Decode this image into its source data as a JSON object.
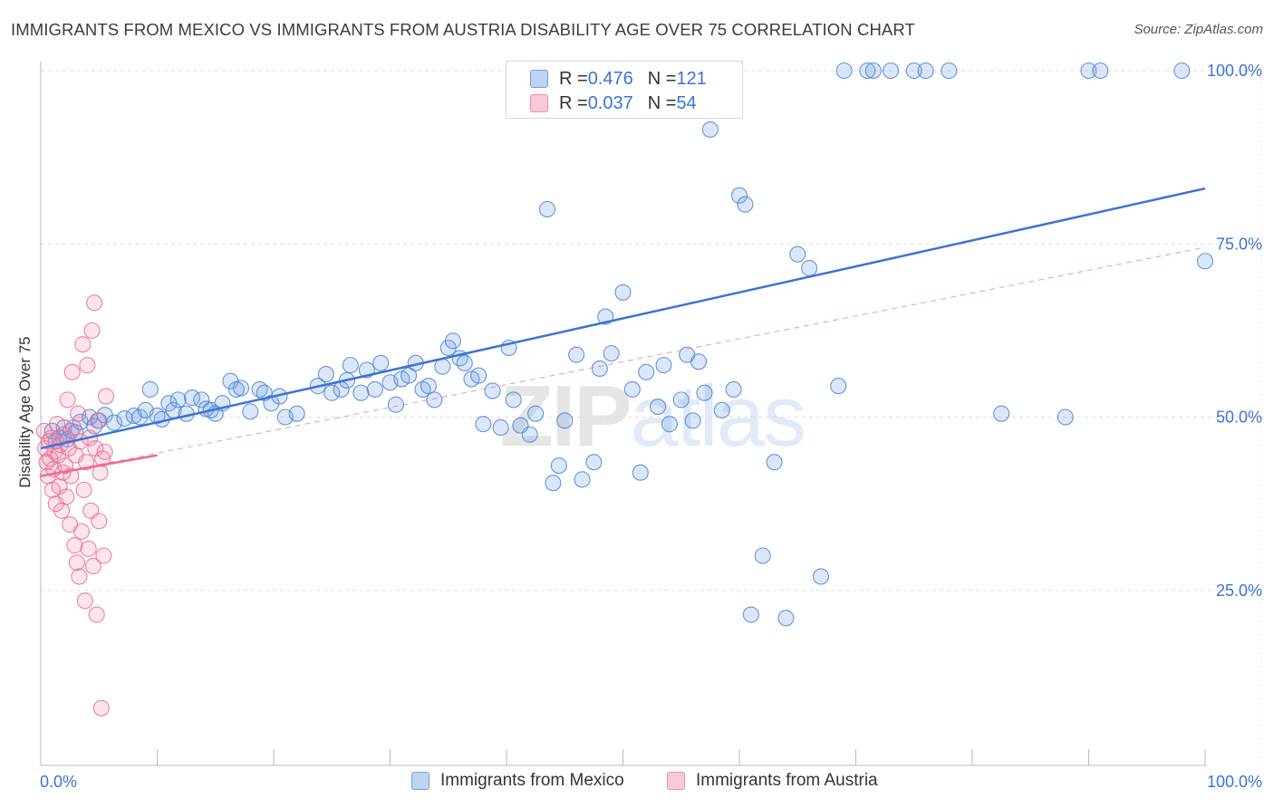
{
  "header": {
    "title": "IMMIGRANTS FROM MEXICO VS IMMIGRANTS FROM AUSTRIA DISABILITY AGE OVER 75 CORRELATION CHART",
    "source": "Source: ZipAtlas.com"
  },
  "watermark": {
    "zip": "ZIP",
    "atlas": "atlas"
  },
  "legend_top": {
    "rows": [
      {
        "r_label": "R = ",
        "r_value": "0.476",
        "n_label": "N = ",
        "n_value": "121"
      },
      {
        "r_label": "R = ",
        "r_value": "0.037",
        "n_label": "N = ",
        "n_value": "54"
      }
    ]
  },
  "legend_bottom": {
    "items": [
      "Immigrants from Mexico",
      "Immigrants from Austria"
    ]
  },
  "chart_data": {
    "type": "scatter",
    "title": "IMMIGRANTS FROM MEXICO VS IMMIGRANTS FROM AUSTRIA DISABILITY AGE OVER 75 CORRELATION CHART",
    "xlabel": "",
    "ylabel": "Disability Age Over 75",
    "xlim": [
      0,
      100
    ],
    "ylim": [
      0,
      100
    ],
    "x_tick_labels": [
      "0.0%",
      "100.0%"
    ],
    "y_ticks": [
      25,
      50,
      75,
      100
    ],
    "y_tick_labels": [
      "25.0%",
      "50.0%",
      "75.0%",
      "100.0%"
    ],
    "grid": true,
    "legend_position": "bottom",
    "colors": {
      "mexico": "#6f9fe3",
      "austria": "#f08aa8",
      "mexico_line": "#3b73d6",
      "austria_line": "#e86c95",
      "tick_label": "#3b73d6"
    },
    "series": [
      {
        "name": "Immigrants from Mexico",
        "color": "#6f9fe3",
        "trend": {
          "x": [
            0,
            100
          ],
          "y": [
            45.5,
            83.0
          ],
          "style": "solid"
        },
        "points": [
          [
            1.0,
            48.0
          ],
          [
            1.3,
            46.5
          ],
          [
            1.6,
            47.0
          ],
          [
            2.0,
            48.5
          ],
          [
            2.3,
            46.8
          ],
          [
            2.6,
            48.0
          ],
          [
            3.0,
            47.8
          ],
          [
            3.4,
            49.3
          ],
          [
            4.2,
            50.0
          ],
          [
            4.6,
            48.7
          ],
          [
            5.0,
            49.5
          ],
          [
            5.5,
            50.3
          ],
          [
            6.3,
            49.2
          ],
          [
            7.2,
            49.8
          ],
          [
            8.0,
            50.2
          ],
          [
            8.5,
            50.0
          ],
          [
            9.0,
            51.0
          ],
          [
            9.4,
            54.0
          ],
          [
            10.0,
            50.2
          ],
          [
            10.4,
            49.7
          ],
          [
            11.0,
            52.0
          ],
          [
            11.4,
            51.0
          ],
          [
            11.8,
            52.5
          ],
          [
            12.5,
            50.5
          ],
          [
            13.0,
            52.8
          ],
          [
            13.8,
            52.5
          ],
          [
            14.2,
            51.2
          ],
          [
            14.6,
            51.0
          ],
          [
            15.0,
            50.5
          ],
          [
            15.6,
            52.0
          ],
          [
            16.3,
            55.2
          ],
          [
            16.8,
            54.0
          ],
          [
            17.2,
            54.2
          ],
          [
            18.0,
            50.8
          ],
          [
            18.8,
            54.0
          ],
          [
            19.2,
            53.5
          ],
          [
            19.8,
            52.0
          ],
          [
            20.5,
            53.0
          ],
          [
            21.0,
            50.0
          ],
          [
            22.0,
            50.5
          ],
          [
            23.8,
            54.5
          ],
          [
            24.5,
            56.2
          ],
          [
            25.0,
            53.5
          ],
          [
            25.8,
            54.0
          ],
          [
            26.3,
            55.3
          ],
          [
            26.6,
            57.5
          ],
          [
            27.5,
            53.5
          ],
          [
            28.0,
            56.8
          ],
          [
            28.7,
            54.0
          ],
          [
            29.2,
            57.8
          ],
          [
            30.0,
            55.0
          ],
          [
            30.5,
            51.8
          ],
          [
            31.0,
            55.5
          ],
          [
            31.6,
            56.0
          ],
          [
            32.2,
            57.8
          ],
          [
            32.8,
            54.0
          ],
          [
            33.3,
            54.5
          ],
          [
            33.8,
            52.5
          ],
          [
            34.5,
            57.3
          ],
          [
            35.0,
            60.0
          ],
          [
            35.4,
            61.0
          ],
          [
            36.0,
            58.5
          ],
          [
            36.4,
            57.8
          ],
          [
            37.0,
            55.5
          ],
          [
            37.6,
            56.0
          ],
          [
            38.0,
            49.0
          ],
          [
            38.8,
            53.8
          ],
          [
            39.5,
            48.5
          ],
          [
            40.2,
            60.0
          ],
          [
            40.6,
            52.5
          ],
          [
            41.2,
            48.8
          ],
          [
            42.0,
            47.5
          ],
          [
            42.5,
            50.5
          ],
          [
            43.5,
            80.0
          ],
          [
            44.0,
            40.5
          ],
          [
            44.5,
            43.0
          ],
          [
            45.0,
            49.5
          ],
          [
            46.0,
            59.0
          ],
          [
            46.5,
            41.0
          ],
          [
            47.5,
            43.5
          ],
          [
            48.0,
            57.0
          ],
          [
            48.5,
            64.5
          ],
          [
            49.0,
            59.2
          ],
          [
            50.0,
            68.0
          ],
          [
            50.8,
            54.0
          ],
          [
            51.5,
            42.0
          ],
          [
            52.0,
            56.5
          ],
          [
            53.0,
            51.5
          ],
          [
            53.5,
            57.5
          ],
          [
            54.0,
            49.0
          ],
          [
            55.0,
            52.5
          ],
          [
            55.5,
            59.0
          ],
          [
            56.0,
            49.5
          ],
          [
            56.5,
            58.0
          ],
          [
            57.0,
            53.5
          ],
          [
            57.5,
            91.5
          ],
          [
            58.5,
            51.0
          ],
          [
            59.5,
            54.0
          ],
          [
            60.0,
            82.0
          ],
          [
            60.5,
            80.7
          ],
          [
            61.0,
            21.5
          ],
          [
            62.0,
            30.0
          ],
          [
            63.0,
            43.5
          ],
          [
            64.0,
            21.0
          ],
          [
            65.0,
            73.5
          ],
          [
            66.0,
            71.5
          ],
          [
            67.0,
            27.0
          ],
          [
            68.5,
            54.5
          ],
          [
            71.0,
            100.0
          ],
          [
            71.5,
            100.0
          ],
          [
            73.0,
            100.0
          ],
          [
            75.0,
            100.0
          ],
          [
            76.0,
            100.0
          ],
          [
            78.0,
            100.0
          ],
          [
            82.5,
            50.5
          ],
          [
            88.0,
            50.0
          ],
          [
            90.0,
            100.0
          ],
          [
            91.0,
            100.0
          ],
          [
            98.0,
            100.0
          ],
          [
            100.0,
            72.5
          ],
          [
            69.0,
            100.0
          ]
        ]
      },
      {
        "name": "Immigrants from Austria",
        "color": "#f08aa8",
        "trend": {
          "x": [
            0,
            10
          ],
          "y": [
            41.5,
            44.5
          ],
          "style": "solid",
          "extension": {
            "x": [
              0,
              100
            ],
            "y": [
              41.5,
              74.5
            ],
            "style": "dashed"
          }
        },
        "points": [
          [
            0.3,
            48.0
          ],
          [
            0.4,
            45.5
          ],
          [
            0.5,
            43.5
          ],
          [
            0.6,
            41.5
          ],
          [
            0.7,
            46.5
          ],
          [
            0.8,
            44.0
          ],
          [
            0.9,
            47.0
          ],
          [
            1.0,
            39.5
          ],
          [
            1.1,
            42.5
          ],
          [
            1.2,
            45.0
          ],
          [
            1.3,
            37.5
          ],
          [
            1.4,
            49.0
          ],
          [
            1.5,
            44.5
          ],
          [
            1.6,
            40.0
          ],
          [
            1.7,
            46.0
          ],
          [
            1.8,
            36.5
          ],
          [
            1.9,
            42.0
          ],
          [
            2.0,
            47.5
          ],
          [
            2.1,
            43.0
          ],
          [
            2.2,
            38.5
          ],
          [
            2.3,
            52.5
          ],
          [
            2.4,
            45.5
          ],
          [
            2.5,
            34.5
          ],
          [
            2.6,
            41.5
          ],
          [
            2.7,
            56.5
          ],
          [
            2.8,
            48.5
          ],
          [
            2.9,
            31.5
          ],
          [
            3.0,
            44.5
          ],
          [
            3.1,
            29.0
          ],
          [
            3.2,
            50.5
          ],
          [
            3.3,
            27.0
          ],
          [
            3.4,
            46.5
          ],
          [
            3.5,
            33.5
          ],
          [
            3.6,
            60.5
          ],
          [
            3.7,
            39.5
          ],
          [
            3.8,
            23.5
          ],
          [
            3.9,
            43.5
          ],
          [
            4.0,
            57.5
          ],
          [
            4.1,
            31.0
          ],
          [
            4.2,
            47.0
          ],
          [
            4.3,
            36.5
          ],
          [
            4.4,
            62.5
          ],
          [
            4.5,
            28.5
          ],
          [
            4.6,
            66.5
          ],
          [
            4.7,
            45.5
          ],
          [
            4.8,
            21.5
          ],
          [
            4.9,
            49.5
          ],
          [
            5.0,
            35.0
          ],
          [
            5.1,
            42.0
          ],
          [
            5.2,
            8.0
          ],
          [
            5.3,
            44.0
          ],
          [
            5.4,
            30.0
          ],
          [
            5.5,
            45.0
          ],
          [
            5.6,
            53.0
          ]
        ]
      }
    ]
  }
}
